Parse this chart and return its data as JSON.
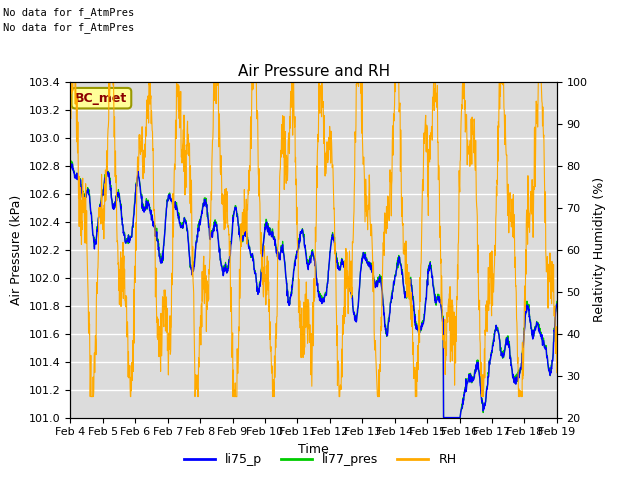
{
  "title": "Air Pressure and RH",
  "xlabel": "Time",
  "ylabel_left": "Air Pressure (kPa)",
  "ylabel_right": "Relativity Humidity (%)",
  "ylim_left": [
    101.0,
    103.4
  ],
  "ylim_right": [
    20,
    100
  ],
  "yticks_left": [
    101.0,
    101.2,
    101.4,
    101.6,
    101.8,
    102.0,
    102.2,
    102.4,
    102.6,
    102.8,
    103.0,
    103.2,
    103.4
  ],
  "yticks_right": [
    20,
    30,
    40,
    50,
    60,
    70,
    80,
    90,
    100
  ],
  "xtick_labels": [
    "Feb 4",
    "Feb 5",
    "Feb 6",
    "Feb 7",
    "Feb 8",
    "Feb 9",
    "Feb 10",
    "Feb 11",
    "Feb 12",
    "Feb 13",
    "Feb 14",
    "Feb 15",
    "Feb 16",
    "Feb 17",
    "Feb 18",
    "Feb 19"
  ],
  "no_data_text1": "No data for f_AtmPres",
  "no_data_text2": "No data for f_AtmPres",
  "bc_met_label": "BC_met",
  "legend_entries": [
    "li75_p",
    "li77_pres",
    "RH"
  ],
  "legend_colors": [
    "#0000ff",
    "#00cc00",
    "#ffaa00"
  ],
  "line_li75_color": "#0000ff",
  "line_li77_color": "#00cc00",
  "line_rh_color": "#ffaa00",
  "plot_bg_color": "#dcdcdc",
  "grid_color": "#ffffff"
}
